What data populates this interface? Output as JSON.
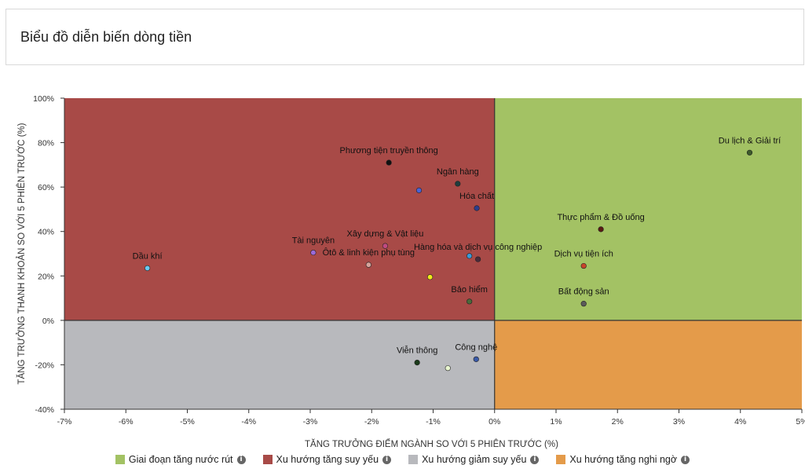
{
  "card": {
    "title": "Biểu đồ diễn biến dòng tiền"
  },
  "colors": {
    "green": "#a3c264",
    "red": "#a84a47",
    "gray": "#b8b9bd",
    "orange": "#e49b4a"
  },
  "legend": [
    {
      "label": "Giai đoạn tăng nước rút",
      "color": "#a3c264",
      "icon": "info-icon"
    },
    {
      "label": "Xu hướng tăng suy yếu",
      "color": "#a84a47",
      "icon": "info-icon"
    },
    {
      "label": "Xu hướng giảm suy yếu",
      "color": "#b8b9bd",
      "icon": "info-icon"
    },
    {
      "label": "Xu hướng tăng nghi ngờ",
      "color": "#e49b4a",
      "icon": "info-icon"
    }
  ],
  "chart_data": {
    "type": "scatter",
    "xlabel": "TĂNG TRƯỞNG ĐIỂM NGÀNH SO VỚI 5 PHIÊN TRƯỚC (%)",
    "ylabel": "TĂNG TRƯỞNG THANH KHOẢN SO VỚI 5 PHIÊN TRƯỚC (%)",
    "xlim": [
      -7,
      5
    ],
    "ylim": [
      -40,
      100
    ],
    "xticks": [
      -7,
      -6,
      -5,
      -4,
      -3,
      -2,
      -1,
      0,
      1,
      2,
      3,
      4,
      5
    ],
    "yticks": [
      -40,
      -20,
      0,
      20,
      40,
      60,
      80,
      100
    ],
    "xtick_labels": [
      "-7%",
      "-6%",
      "-5%",
      "-4%",
      "-3%",
      "-2%",
      "-1%",
      "0%",
      "1%",
      "2%",
      "3%",
      "4%",
      "5%"
    ],
    "ytick_labels": [
      "-40%",
      "-20%",
      "0%",
      "20%",
      "40%",
      "60%",
      "80%",
      "100%"
    ],
    "quadrants": [
      {
        "name": "top-left",
        "color": "#a84a47"
      },
      {
        "name": "top-right",
        "color": "#a3c264"
      },
      {
        "name": "bottom-left",
        "color": "#b8b9bd"
      },
      {
        "name": "bottom-right",
        "color": "#e49b4a"
      }
    ],
    "points": [
      {
        "label": "Du lịch & Giải trí",
        "x": 4.15,
        "y": 75.5,
        "color": "#3d5a2a"
      },
      {
        "label": "Phương tiện truyền thông",
        "x": -1.72,
        "y": 71,
        "color": "#111111"
      },
      {
        "label": "Ngân hàng",
        "x": -0.6,
        "y": 61.5,
        "color": "#1e3d3d"
      },
      {
        "label": "",
        "x": -1.23,
        "y": 58.5,
        "color": "#4a63d6"
      },
      {
        "label": "Hóa chất",
        "x": -0.29,
        "y": 50.5,
        "color": "#2d3d8c"
      },
      {
        "label": "Thực phẩm & Đồ uống",
        "x": 1.73,
        "y": 41,
        "color": "#5a1a12"
      },
      {
        "label": "Xây dựng & Vật liệu",
        "x": -1.78,
        "y": 33.5,
        "color": "#c04a80"
      },
      {
        "label": "Tài nguyên",
        "x": -2.95,
        "y": 30.5,
        "color": "#9b6ad8"
      },
      {
        "label": "Hàng hóa và dịch vụ công nghiệp",
        "x": -0.27,
        "y": 27.5,
        "color": "#4a2a3a"
      },
      {
        "label": "",
        "x": -0.41,
        "y": 29,
        "color": "#3a9ad9"
      },
      {
        "label": "Ôtô & linh kiện phụ tùng",
        "x": -2.05,
        "y": 25,
        "color": "#d6a49c"
      },
      {
        "label": "Dịch vụ tiện ích",
        "x": 1.45,
        "y": 24.5,
        "color": "#c8442a"
      },
      {
        "label": "Dầu khí",
        "x": -5.65,
        "y": 23.5,
        "color": "#6ac8f0"
      },
      {
        "label": "",
        "x": -1.05,
        "y": 19.5,
        "color": "#f0ea1a"
      },
      {
        "label": "Bảo hiểm",
        "x": -0.41,
        "y": 8.5,
        "color": "#4a6a3a"
      },
      {
        "label": "Bất động sản",
        "x": 1.45,
        "y": 7.5,
        "color": "#5a5a5a"
      },
      {
        "label": "Công nghệ",
        "x": -0.3,
        "y": -17.5,
        "color": "#3a5aa8"
      },
      {
        "label": "Viễn thông",
        "x": -1.26,
        "y": -19,
        "color": "#1a3a1a"
      },
      {
        "label": "",
        "x": -0.76,
        "y": -21.5,
        "color": "#e8f5d0"
      }
    ]
  }
}
